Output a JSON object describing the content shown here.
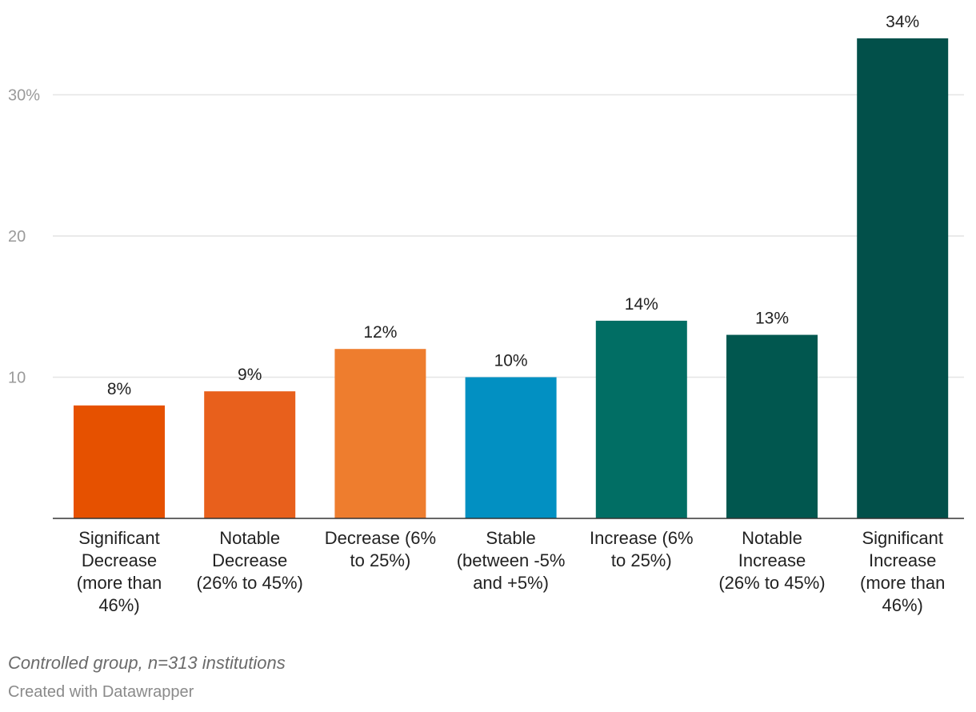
{
  "chart_data": {
    "type": "bar",
    "categories": [
      [
        "Significant",
        "Decrease",
        "(more than",
        "46%)"
      ],
      [
        "Notable",
        "Decrease",
        "(26% to 45%)"
      ],
      [
        "Decrease (6%",
        "to 25%)"
      ],
      [
        "Stable",
        "(between -5%",
        "and +5%)"
      ],
      [
        "Increase (6%",
        "to 25%)"
      ],
      [
        "Notable",
        "Increase",
        "(26% to 45%)"
      ],
      [
        "Significant",
        "Increase",
        "(more than",
        "46%)"
      ]
    ],
    "values": [
      8,
      9,
      12,
      10,
      14,
      13,
      34
    ],
    "value_labels": [
      "8%",
      "9%",
      "12%",
      "10%",
      "14%",
      "13%",
      "34%"
    ],
    "colors": [
      "#e65100",
      "#e8601c",
      "#ee7d2e",
      "#0290c2",
      "#016e64",
      "#01574f",
      "#02504a"
    ],
    "yticks": [
      10,
      20,
      30
    ],
    "ytick_labels": [
      "10",
      "20",
      "30%"
    ],
    "ylim": [
      0,
      35
    ],
    "grid": true
  },
  "footer": {
    "note": "Controlled group, n=313 institutions",
    "credit": "Created with Datawrapper"
  }
}
